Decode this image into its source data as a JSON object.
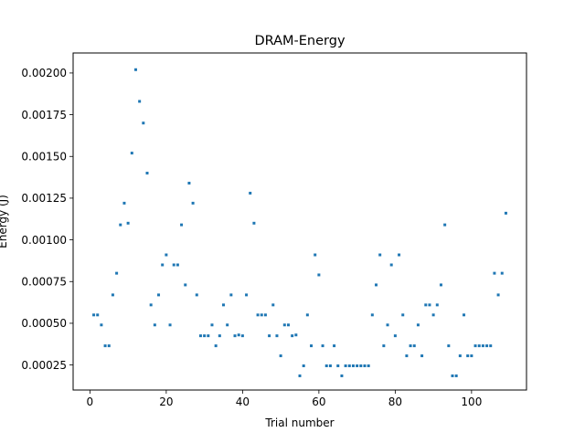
{
  "chart_data": {
    "type": "scatter",
    "title": "DRAM-Energy",
    "xlabel": "Trial number",
    "ylabel": "Energy (J)",
    "xlim": [
      -4.4,
      114.4
    ],
    "ylim": [
      0.0001,
      0.00212
    ],
    "xticks": [
      0,
      20,
      40,
      60,
      80,
      100
    ],
    "xtick_labels": [
      "0",
      "20",
      "40",
      "60",
      "80",
      "100"
    ],
    "yticks": [
      0.00025,
      0.0005,
      0.00075,
      0.001,
      0.00125,
      0.0015,
      0.00175,
      0.002
    ],
    "ytick_labels": [
      "0.00025",
      "0.00050",
      "0.00075",
      "0.00100",
      "0.00125",
      "0.00150",
      "0.00175",
      "0.00200"
    ],
    "grid": false,
    "marker_color": "#1f77b4",
    "series": [
      {
        "x": [
          1,
          2,
          3,
          4,
          5,
          6,
          7,
          8,
          9,
          10,
          11,
          12,
          13,
          14,
          15,
          16,
          17,
          18,
          19,
          20,
          21,
          22,
          23,
          24,
          25,
          26,
          27,
          28,
          29,
          30,
          31,
          32,
          33,
          34,
          35,
          36,
          37,
          38,
          39,
          40,
          41,
          42,
          43,
          44,
          45,
          46,
          47,
          48,
          49,
          50,
          51,
          52,
          53,
          54,
          55,
          56,
          57,
          58,
          59,
          60,
          61,
          62,
          63,
          64,
          65,
          66,
          67,
          68,
          69,
          70,
          71,
          72,
          73,
          74,
          75,
          76,
          77,
          78,
          79,
          80,
          81,
          82,
          83,
          84,
          85,
          86,
          87,
          88,
          89,
          90,
          91,
          92,
          93,
          94,
          95,
          96,
          97,
          98,
          99,
          100,
          101,
          102,
          103,
          104,
          105,
          106,
          107,
          108,
          109
        ],
        "y": [
          0.00055,
          0.00055,
          0.00049,
          0.000365,
          0.000365,
          0.00067,
          0.0008,
          0.00109,
          0.00122,
          0.0011,
          0.00152,
          0.00202,
          0.00183,
          0.0017,
          0.0014,
          0.00061,
          0.00049,
          0.00067,
          0.00085,
          0.00091,
          0.00049,
          0.00085,
          0.00085,
          0.00109,
          0.00073,
          0.00134,
          0.00122,
          0.00067,
          0.000425,
          0.000425,
          0.000425,
          0.00049,
          0.000365,
          0.000425,
          0.00061,
          0.00049,
          0.00067,
          0.000425,
          0.00043,
          0.000425,
          0.00067,
          0.00128,
          0.0011,
          0.00055,
          0.00055,
          0.00055,
          0.000425,
          0.00061,
          0.000425,
          0.000305,
          0.00049,
          0.00049,
          0.000425,
          0.00043,
          0.000185,
          0.000245,
          0.00055,
          0.000365,
          0.00091,
          0.00079,
          0.000365,
          0.000245,
          0.000245,
          0.000365,
          0.000245,
          0.000185,
          0.000245,
          0.000245,
          0.000245,
          0.000245,
          0.000245,
          0.000245,
          0.000245,
          0.00055,
          0.00073,
          0.00091,
          0.000365,
          0.00049,
          0.00085,
          0.000425,
          0.00091,
          0.00055,
          0.000305,
          0.000365,
          0.000365,
          0.00049,
          0.000305,
          0.00061,
          0.00061,
          0.00055,
          0.00061,
          0.00073,
          0.00109,
          0.000365,
          0.000185,
          0.000185,
          0.000305,
          0.00055,
          0.000305,
          0.000305,
          0.000365,
          0.000365,
          0.000365,
          0.000365,
          0.000365,
          0.0008,
          0.00067,
          0.0008,
          0.00116
        ]
      }
    ]
  }
}
